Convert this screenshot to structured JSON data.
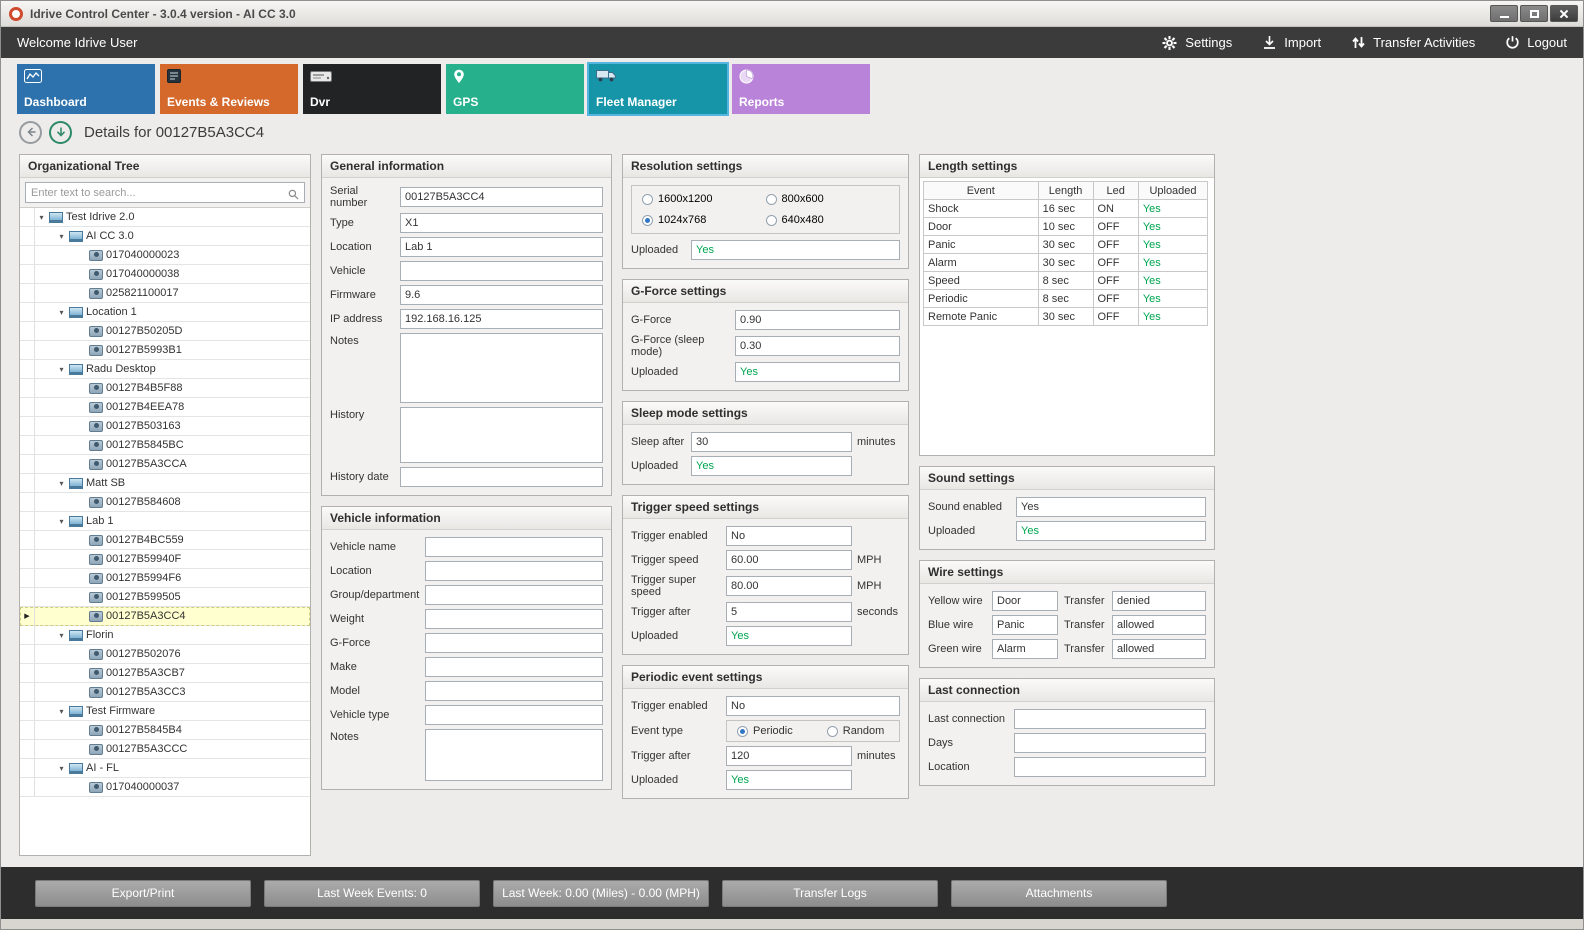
{
  "window": {
    "title": "Idrive Control Center - 3.0.4 version - AI CC 3.0"
  },
  "topbar": {
    "welcome": "Welcome Idrive User",
    "actions": [
      {
        "label": "Settings",
        "icon": "settings-icon"
      },
      {
        "label": "Import",
        "icon": "import-icon"
      },
      {
        "label": "Transfer Activities",
        "icon": "transfer-activities-icon"
      },
      {
        "label": "Logout",
        "icon": "logout-icon"
      }
    ]
  },
  "tabs": [
    {
      "label": "Dashboard",
      "color": "#2d72ad",
      "icon": "dashboard-icon",
      "active": false
    },
    {
      "label": "Events & Reviews",
      "color": "#d4692b",
      "icon": "events-icon",
      "active": false
    },
    {
      "label": "Dvr",
      "color": "#212325",
      "icon": "dvr-icon",
      "active": false
    },
    {
      "label": "GPS",
      "color": "#27b08c",
      "icon": "gps-icon",
      "active": false
    },
    {
      "label": "Fleet Manager",
      "color": "#1795a8",
      "icon": "fleet-icon",
      "active": true
    },
    {
      "label": "Reports",
      "color": "#b983d9",
      "icon": "reports-icon",
      "active": false
    }
  ],
  "details": {
    "title": "Details for 00127B5A3CC4"
  },
  "colors": {
    "green": "#00A651",
    "selected_row": "#FFFFCF",
    "active_tab_border": "#53B5E0"
  },
  "org_tree": {
    "title": "Organizational Tree",
    "search_placeholder": "Enter text to search...",
    "nodes": [
      {
        "label": "Test Idrive 2.0",
        "level": 0,
        "type": "group"
      },
      {
        "label": "AI CC 3.0",
        "level": 1,
        "type": "group"
      },
      {
        "label": "017040000023",
        "level": 2,
        "type": "device"
      },
      {
        "label": "017040000038",
        "level": 2,
        "type": "device"
      },
      {
        "label": "025821100017",
        "level": 2,
        "type": "device"
      },
      {
        "label": "Location 1",
        "level": 1,
        "type": "group"
      },
      {
        "label": "00127B50205D",
        "level": 2,
        "type": "device"
      },
      {
        "label": "00127B5993B1",
        "level": 2,
        "type": "device"
      },
      {
        "label": "Radu Desktop",
        "level": 1,
        "type": "group"
      },
      {
        "label": "00127B4B5F88",
        "level": 2,
        "type": "device"
      },
      {
        "label": "00127B4EEA78",
        "level": 2,
        "type": "device"
      },
      {
        "label": "00127B503163",
        "level": 2,
        "type": "device"
      },
      {
        "label": "00127B5845BC",
        "level": 2,
        "type": "device"
      },
      {
        "label": "00127B5A3CCA",
        "level": 2,
        "type": "device"
      },
      {
        "label": "Matt SB",
        "level": 1,
        "type": "group"
      },
      {
        "label": "00127B584608",
        "level": 2,
        "type": "device"
      },
      {
        "label": "Lab 1",
        "level": 1,
        "type": "group"
      },
      {
        "label": "00127B4BC559",
        "level": 2,
        "type": "device"
      },
      {
        "label": "00127B59940F",
        "level": 2,
        "type": "device"
      },
      {
        "label": "00127B5994F6",
        "level": 2,
        "type": "device"
      },
      {
        "label": "00127B599505",
        "level": 2,
        "type": "device"
      },
      {
        "label": "00127B5A3CC4",
        "level": 2,
        "type": "device",
        "selected": true
      },
      {
        "label": "Florin",
        "level": 1,
        "type": "group"
      },
      {
        "label": "00127B502076",
        "level": 2,
        "type": "device"
      },
      {
        "label": "00127B5A3CB7",
        "level": 2,
        "type": "device"
      },
      {
        "label": "00127B5A3CC3",
        "level": 2,
        "type": "device"
      },
      {
        "label": "Test Firmware",
        "level": 1,
        "type": "group"
      },
      {
        "label": "00127B5845B4",
        "level": 2,
        "type": "device"
      },
      {
        "label": "00127B5A3CCC",
        "level": 2,
        "type": "device"
      },
      {
        "label": "AI - FL",
        "level": 1,
        "type": "group"
      },
      {
        "label": "017040000037",
        "level": 2,
        "type": "device"
      }
    ]
  },
  "general_info": {
    "title": "General information",
    "fields": [
      {
        "label": "Serial number",
        "value": "00127B5A3CC4"
      },
      {
        "label": "Type",
        "value": "X1"
      },
      {
        "label": "Location",
        "value": "Lab 1"
      },
      {
        "label": "Vehicle",
        "value": ""
      },
      {
        "label": "Firmware",
        "value": "9.6"
      },
      {
        "label": "IP address",
        "value": "192.168.16.125"
      }
    ],
    "notes_label": "Notes",
    "notes_value": "",
    "history_label": "History",
    "history_value": "",
    "history_date_label": "History date",
    "history_date_value": ""
  },
  "vehicle_info": {
    "title": "Vehicle information",
    "fields": [
      {
        "label": "Vehicle name",
        "value": ""
      },
      {
        "label": "Location",
        "value": ""
      },
      {
        "label": "Group/department",
        "value": ""
      },
      {
        "label": "Weight",
        "value": ""
      },
      {
        "label": "G-Force",
        "value": ""
      },
      {
        "label": "Make",
        "value": ""
      },
      {
        "label": "Model",
        "value": ""
      },
      {
        "label": "Vehicle type",
        "value": ""
      }
    ],
    "notes_label": "Notes",
    "notes_value": ""
  },
  "resolution": {
    "title": "Resolution settings",
    "options": [
      {
        "label": "1600x1200",
        "checked": false
      },
      {
        "label": "800x600",
        "checked": false
      },
      {
        "label": "1024x768",
        "checked": true
      },
      {
        "label": "640x480",
        "checked": false
      }
    ],
    "uploaded_label": "Uploaded",
    "uploaded_value": "Yes"
  },
  "gforce": {
    "title": "G-Force settings",
    "fields": [
      {
        "label": "G-Force",
        "value": "0.90"
      },
      {
        "label": "G-Force (sleep mode)",
        "value": "0.30"
      },
      {
        "label": "Uploaded",
        "value": "Yes",
        "green": true
      }
    ]
  },
  "sleep": {
    "title": "Sleep mode settings",
    "fields": [
      {
        "label": "Sleep after",
        "value": "30",
        "suffix": "minutes"
      },
      {
        "label": "Uploaded",
        "value": "Yes",
        "green": true,
        "suffix": ""
      }
    ]
  },
  "trigger_speed": {
    "title": "Trigger speed settings",
    "fields": [
      {
        "label": "Trigger enabled",
        "value": "No",
        "suffix": ""
      },
      {
        "label": "Trigger speed",
        "value": "60.00",
        "suffix": "MPH"
      },
      {
        "label": "Trigger super speed",
        "value": "80.00",
        "suffix": "MPH"
      },
      {
        "label": "Trigger after",
        "value": "5",
        "suffix": "seconds"
      },
      {
        "label": "Uploaded",
        "value": "Yes",
        "green": true,
        "suffix": ""
      }
    ]
  },
  "periodic": {
    "title": "Periodic event settings",
    "fields_top": [
      {
        "label": "Trigger enabled",
        "value": "No"
      }
    ],
    "event_type_label": "Event type",
    "event_options": [
      {
        "label": "Periodic",
        "checked": true
      },
      {
        "label": "Random",
        "checked": false
      }
    ],
    "fields_bottom": [
      {
        "label": "Trigger after",
        "value": "120",
        "suffix": "minutes"
      },
      {
        "label": "Uploaded",
        "value": "Yes",
        "green": true,
        "suffix": ""
      }
    ]
  },
  "length_settings": {
    "title": "Length settings",
    "columns": [
      "Event",
      "Length",
      "Led",
      "Uploaded"
    ],
    "rows": [
      [
        "Shock",
        "16 sec",
        "ON",
        "Yes"
      ],
      [
        "Door",
        "10 sec",
        "OFF",
        "Yes"
      ],
      [
        "Panic",
        "30 sec",
        "OFF",
        "Yes"
      ],
      [
        "Alarm",
        "30 sec",
        "OFF",
        "Yes"
      ],
      [
        "Speed",
        "8 sec",
        "OFF",
        "Yes"
      ],
      [
        "Periodic",
        "8 sec",
        "OFF",
        "Yes"
      ],
      [
        "Remote Panic",
        "30 sec",
        "OFF",
        "Yes"
      ]
    ]
  },
  "sound": {
    "title": "Sound settings",
    "fields": [
      {
        "label": "Sound enabled",
        "value": "Yes"
      },
      {
        "label": "Uploaded",
        "value": "Yes",
        "green": true
      }
    ]
  },
  "wire": {
    "title": "Wire settings",
    "rows": [
      {
        "wire_label": "Yellow wire",
        "wire_value": "Door",
        "transfer_label": "Transfer",
        "transfer_value": "denied"
      },
      {
        "wire_label": "Blue wire",
        "wire_value": "Panic",
        "transfer_label": "Transfer",
        "transfer_value": "allowed"
      },
      {
        "wire_label": "Green wire",
        "wire_value": "Alarm",
        "transfer_label": "Transfer",
        "transfer_value": "allowed"
      }
    ]
  },
  "last_connection": {
    "title": "Last connection",
    "fields": [
      {
        "label": "Last connection",
        "value": ""
      },
      {
        "label": "Days",
        "value": ""
      },
      {
        "label": "Location",
        "value": ""
      }
    ]
  },
  "bottom_bar": {
    "buttons": [
      "Export/Print",
      "Last Week Events: 0",
      "Last Week: 0.00 (Miles) - 0.00 (MPH)",
      "Transfer Logs",
      "Attachments"
    ]
  }
}
